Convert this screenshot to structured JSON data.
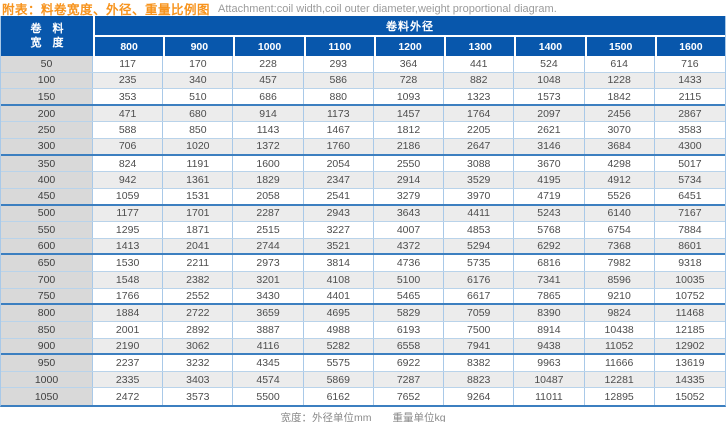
{
  "title": {
    "zh": "附表：料卷宽度、外径、重量比例图",
    "en": "Attachment:coil width,coil outer diameter,weight proportional diagram."
  },
  "colors": {
    "header_blue": "#0857ac",
    "title_orange": "#f7941e",
    "thin_rule_blue": "#b9d3ea",
    "group_rule_blue": "#3c7fc0",
    "left_column_gray": "#d9d9d9",
    "stripe_gray": "#ececec"
  },
  "table": {
    "corner_line1": "卷　料",
    "corner_line2": "宽　度",
    "group_header": "卷料外径",
    "columns": [
      "800",
      "900",
      "1000",
      "1100",
      "1200",
      "1300",
      "1400",
      "1500",
      "1600"
    ],
    "rows": [
      {
        "width": "50",
        "values": [
          117,
          170,
          228,
          293,
          364,
          441,
          524,
          614,
          716
        ]
      },
      {
        "width": "100",
        "values": [
          235,
          340,
          457,
          586,
          728,
          882,
          1048,
          1228,
          1433
        ]
      },
      {
        "width": "150",
        "values": [
          353,
          510,
          686,
          880,
          1093,
          1323,
          1573,
          1842,
          2115
        ]
      },
      {
        "width": "200",
        "values": [
          471,
          680,
          914,
          1173,
          1457,
          1764,
          2097,
          2456,
          2867
        ]
      },
      {
        "width": "250",
        "values": [
          588,
          850,
          1143,
          1467,
          1812,
          2205,
          2621,
          3070,
          3583
        ]
      },
      {
        "width": "300",
        "values": [
          706,
          1020,
          1372,
          1760,
          2186,
          2647,
          3146,
          3684,
          4300
        ]
      },
      {
        "width": "350",
        "values": [
          824,
          1191,
          1600,
          2054,
          2550,
          3088,
          3670,
          4298,
          5017
        ]
      },
      {
        "width": "400",
        "values": [
          942,
          1361,
          1829,
          2347,
          2914,
          3529,
          4195,
          4912,
          5734
        ]
      },
      {
        "width": "450",
        "values": [
          1059,
          1531,
          2058,
          2541,
          3279,
          3970,
          4719,
          5526,
          6451
        ]
      },
      {
        "width": "500",
        "values": [
          1177,
          1701,
          2287,
          2943,
          3643,
          4411,
          5243,
          6140,
          7167
        ]
      },
      {
        "width": "550",
        "values": [
          1295,
          1871,
          2515,
          3227,
          4007,
          4853,
          5768,
          6754,
          7884
        ]
      },
      {
        "width": "600",
        "values": [
          1413,
          2041,
          2744,
          3521,
          4372,
          5294,
          6292,
          7368,
          8601
        ]
      },
      {
        "width": "650",
        "values": [
          1530,
          2211,
          2973,
          3814,
          4736,
          5735,
          6816,
          7982,
          9318
        ]
      },
      {
        "width": "700",
        "values": [
          1548,
          2382,
          3201,
          4108,
          5100,
          6176,
          7341,
          8596,
          10035
        ]
      },
      {
        "width": "750",
        "values": [
          1766,
          2552,
          3430,
          4401,
          5465,
          6617,
          7865,
          9210,
          10752
        ]
      },
      {
        "width": "800",
        "values": [
          1884,
          2722,
          3659,
          4695,
          5829,
          7059,
          8390,
          9824,
          11468
        ]
      },
      {
        "width": "850",
        "values": [
          2001,
          2892,
          3887,
          4988,
          6193,
          7500,
          8914,
          10438,
          12185
        ]
      },
      {
        "width": "900",
        "values": [
          2190,
          3062,
          4116,
          5282,
          6558,
          7941,
          9438,
          11052,
          12902
        ]
      },
      {
        "width": "950",
        "values": [
          2237,
          3232,
          4345,
          5575,
          6922,
          8382,
          9963,
          11666,
          13619
        ]
      },
      {
        "width": "1000",
        "values": [
          2335,
          3403,
          4574,
          5869,
          7287,
          8823,
          10487,
          12281,
          14335
        ]
      },
      {
        "width": "1050",
        "values": [
          2472,
          3573,
          5500,
          6162,
          7652,
          9264,
          11011,
          12895,
          15052
        ]
      }
    ]
  },
  "footer": {
    "note": "宽度：外径单位mm　　重量单位kg"
  }
}
